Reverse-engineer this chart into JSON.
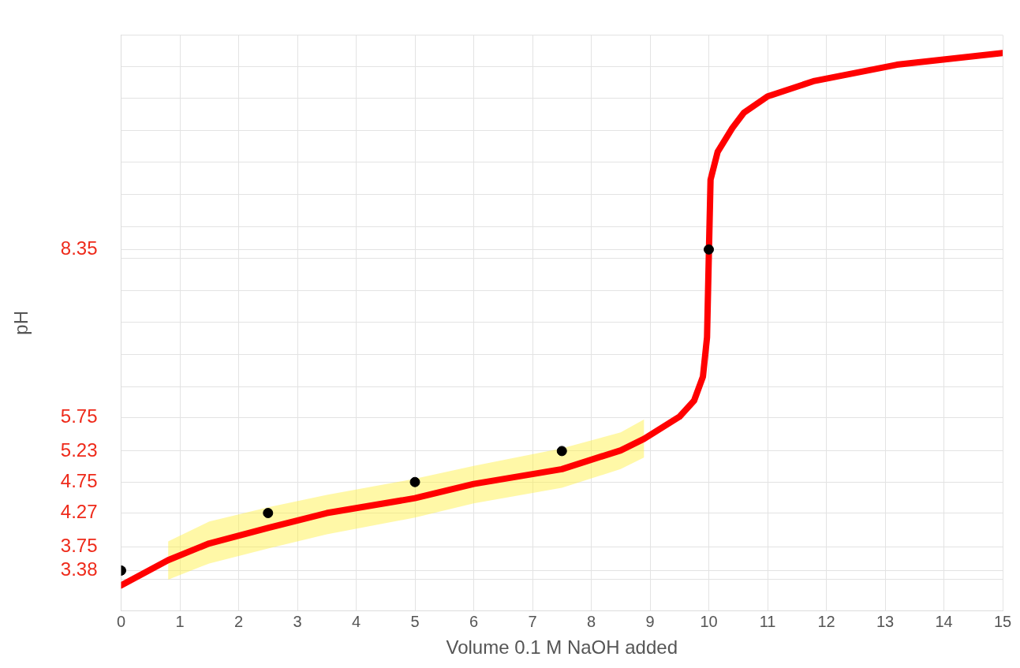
{
  "chart_data": {
    "type": "line",
    "xlabel": "Volume 0.1 M NaOH added",
    "ylabel": "pH",
    "xlim": [
      0,
      15
    ],
    "xticks": [
      0,
      1,
      2,
      3,
      4,
      5,
      6,
      7,
      8,
      9,
      10,
      11,
      12,
      13,
      14,
      15
    ],
    "ylim": [
      2.76,
      11.67
    ],
    "yticks": [
      {
        "value": 3.25,
        "label": null
      },
      3.38,
      3.75,
      4.27,
      4.75,
      5.23,
      5.75,
      {
        "value": 6.22,
        "label": null
      },
      {
        "value": 6.72,
        "label": null
      },
      {
        "value": 7.22,
        "label": null
      },
      {
        "value": 7.71,
        "label": null
      },
      {
        "value": 8.21,
        "label": null
      },
      8.35,
      {
        "value": 8.7,
        "label": null
      },
      {
        "value": 9.2,
        "label": null
      },
      {
        "value": 9.7,
        "label": null
      },
      {
        "value": 10.19,
        "label": null
      },
      {
        "value": 10.69,
        "label": null
      },
      {
        "value": 11.18,
        "label": null
      },
      {
        "value": 11.67,
        "label": null
      }
    ],
    "grid": true,
    "legend": false,
    "series": [
      {
        "color": "#ff0000",
        "marker": "none",
        "x": [
          0,
          0.8,
          1.5,
          2.5,
          3.5,
          5,
          6,
          7.5,
          8.5,
          8.9,
          9.5,
          9.75,
          9.9,
          9.97,
          10,
          10.03,
          10.15,
          10.4,
          10.6,
          11,
          11.8,
          13.2,
          15
        ],
        "values": [
          3.15,
          3.54,
          3.8,
          4.04,
          4.27,
          4.5,
          4.72,
          4.95,
          5.24,
          5.42,
          5.76,
          6.01,
          6.38,
          6.99,
          8.24,
          9.43,
          9.86,
          10.23,
          10.47,
          10.72,
          10.96,
          11.21,
          11.39
        ],
        "lower": [
          null,
          3.24,
          3.49,
          3.72,
          3.94,
          4.2,
          4.42,
          4.66,
          4.95,
          5.13,
          null,
          null,
          null,
          null,
          null,
          null,
          null,
          null,
          null,
          null,
          null,
          null,
          null
        ],
        "upper": [
          null,
          3.83,
          4.14,
          4.36,
          4.55,
          4.8,
          5.0,
          5.27,
          5.52,
          5.72,
          null,
          null,
          null,
          null,
          null,
          null,
          null,
          null,
          null,
          null,
          null,
          null,
          null
        ]
      },
      {
        "type": "scatter",
        "color": "#000000",
        "marker": "circle",
        "x": [
          0,
          2.5,
          5,
          7.5,
          10
        ],
        "values": [
          3.38,
          4.27,
          4.75,
          5.23,
          8.35
        ]
      }
    ]
  }
}
